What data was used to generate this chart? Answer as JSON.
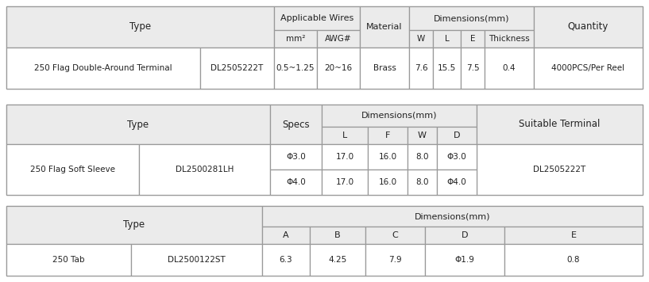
{
  "bg_color": "#ebebeb",
  "white": "#ffffff",
  "border_color": "#999999",
  "text_color": "#222222",
  "table1": {
    "data": [
      "250 Flag Double-Around Terminal",
      "DL2505222T",
      "0.5~1.25",
      "20~16",
      "Brass",
      "7.6",
      "15.5",
      "7.5",
      "0.4",
      "4000PCS/Per Reel"
    ]
  },
  "table2": {
    "data_row1": [
      "250 Flag Soft Sleeve",
      "DL2500281LH",
      "Φ3.0",
      "17.0",
      "16.0",
      "8.0",
      "Φ3.0",
      "DL2505222T"
    ],
    "data_row2": [
      "",
      "",
      "Φ4.0",
      "17.0",
      "16.0",
      "8.0",
      "Φ4.0",
      ""
    ]
  },
  "table3": {
    "data": [
      "250 Tab",
      "DL2500122ST",
      "6.3",
      "4.25",
      "7.9",
      "Φ1.9",
      "0.8"
    ]
  }
}
